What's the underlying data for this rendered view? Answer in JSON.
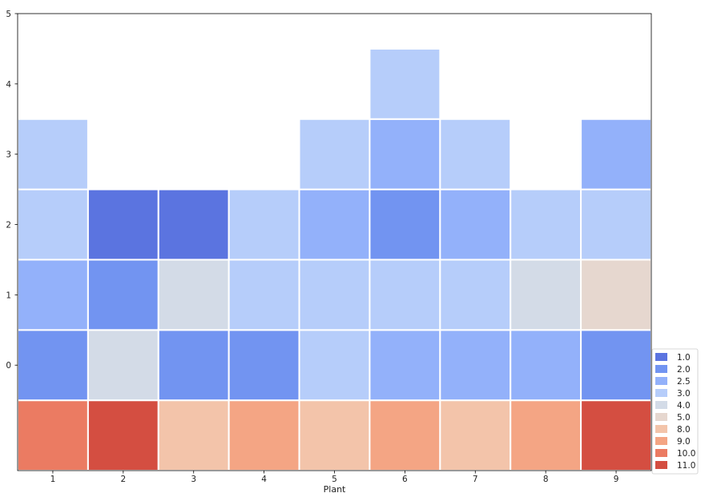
{
  "chart_data": {
    "type": "heatmap",
    "title": "",
    "xlabel": "Plant",
    "ylabel": "",
    "xlim": [
      0.5,
      9.5
    ],
    "ylim": [
      -1.5,
      5
    ],
    "x_ticks": [
      1,
      2,
      3,
      4,
      5,
      6,
      7,
      8,
      9
    ],
    "y_ticks": [
      0,
      1,
      2,
      3,
      4,
      5
    ],
    "grid": false,
    "legend_position": "bottom-right",
    "colors": {
      "1.0": "#5b74e0",
      "2.0": "#7294f1",
      "2.5": "#93b1fa",
      "3.0": "#b6cdfa",
      "4.0": "#d3dbe7",
      "5.0": "#e6d7cf",
      "8.0": "#f3c4aa",
      "9.0": "#f4a584",
      "10.0": "#eb7b62",
      "11.0": "#d44e41"
    },
    "legend": [
      "1.0",
      "2.0",
      "2.5",
      "3.0",
      "4.0",
      "5.0",
      "8.0",
      "9.0",
      "10.0",
      "11.0"
    ],
    "cells": [
      {
        "x": 1,
        "y": -1,
        "value": "10.0"
      },
      {
        "x": 1,
        "y": 0,
        "value": "2.0"
      },
      {
        "x": 1,
        "y": 1,
        "value": "2.5"
      },
      {
        "x": 1,
        "y": 2,
        "value": "3.0"
      },
      {
        "x": 1,
        "y": 3,
        "value": "3.0"
      },
      {
        "x": 2,
        "y": -1,
        "value": "11.0"
      },
      {
        "x": 2,
        "y": 0,
        "value": "4.0"
      },
      {
        "x": 2,
        "y": 1,
        "value": "2.0"
      },
      {
        "x": 2,
        "y": 2,
        "value": "1.0"
      },
      {
        "x": 3,
        "y": -1,
        "value": "8.0"
      },
      {
        "x": 3,
        "y": 0,
        "value": "2.0"
      },
      {
        "x": 3,
        "y": 1,
        "value": "4.0"
      },
      {
        "x": 3,
        "y": 2,
        "value": "1.0"
      },
      {
        "x": 4,
        "y": -1,
        "value": "9.0"
      },
      {
        "x": 4,
        "y": 0,
        "value": "2.0"
      },
      {
        "x": 4,
        "y": 1,
        "value": "3.0"
      },
      {
        "x": 4,
        "y": 2,
        "value": "3.0"
      },
      {
        "x": 5,
        "y": -1,
        "value": "8.0"
      },
      {
        "x": 5,
        "y": 0,
        "value": "3.0"
      },
      {
        "x": 5,
        "y": 1,
        "value": "3.0"
      },
      {
        "x": 5,
        "y": 2,
        "value": "2.5"
      },
      {
        "x": 5,
        "y": 3,
        "value": "3.0"
      },
      {
        "x": 6,
        "y": -1,
        "value": "9.0"
      },
      {
        "x": 6,
        "y": 0,
        "value": "2.5"
      },
      {
        "x": 6,
        "y": 1,
        "value": "3.0"
      },
      {
        "x": 6,
        "y": 2,
        "value": "2.0"
      },
      {
        "x": 6,
        "y": 3,
        "value": "2.5"
      },
      {
        "x": 6,
        "y": 4,
        "value": "3.0"
      },
      {
        "x": 7,
        "y": -1,
        "value": "8.0"
      },
      {
        "x": 7,
        "y": 0,
        "value": "2.5"
      },
      {
        "x": 7,
        "y": 1,
        "value": "3.0"
      },
      {
        "x": 7,
        "y": 2,
        "value": "2.5"
      },
      {
        "x": 7,
        "y": 3,
        "value": "3.0"
      },
      {
        "x": 8,
        "y": -1,
        "value": "9.0"
      },
      {
        "x": 8,
        "y": 0,
        "value": "2.5"
      },
      {
        "x": 8,
        "y": 1,
        "value": "4.0"
      },
      {
        "x": 8,
        "y": 2,
        "value": "3.0"
      },
      {
        "x": 9,
        "y": -1,
        "value": "11.0"
      },
      {
        "x": 9,
        "y": 0,
        "value": "2.0"
      },
      {
        "x": 9,
        "y": 1,
        "value": "5.0"
      },
      {
        "x": 9,
        "y": 2,
        "value": "3.0"
      },
      {
        "x": 9,
        "y": 3,
        "value": "2.5"
      }
    ]
  }
}
